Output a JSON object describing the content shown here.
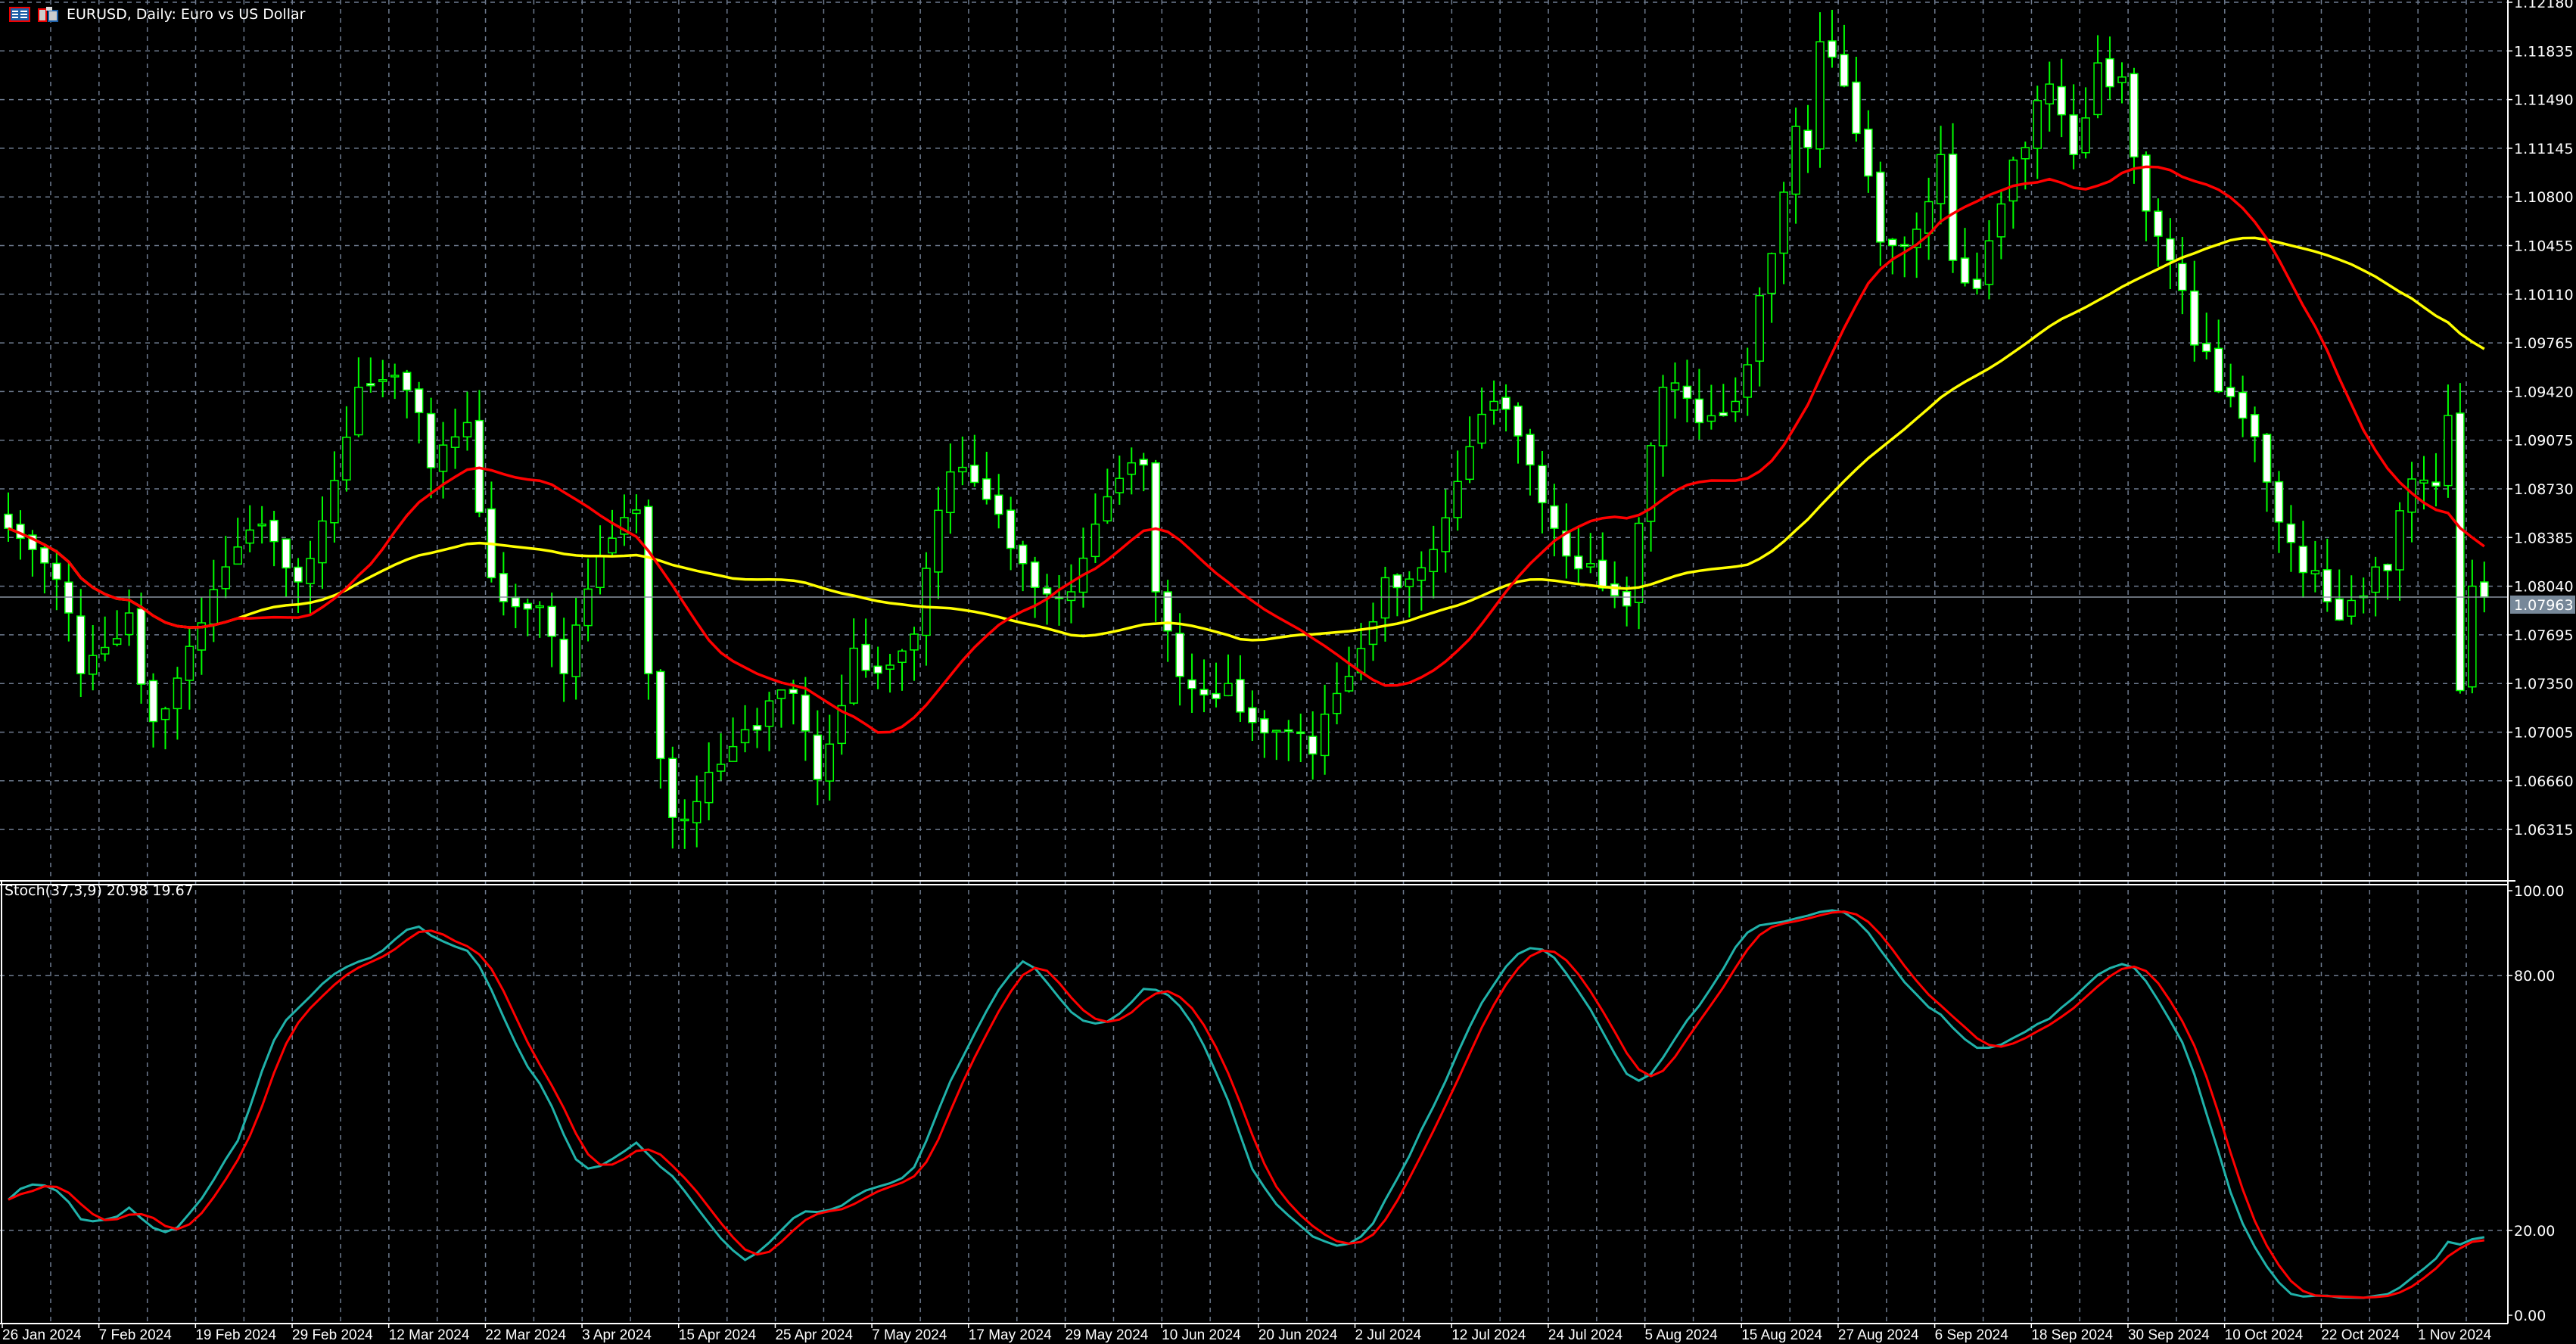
{
  "window": {
    "title": "EURUSD, Daily:  Euro vs US Dollar"
  },
  "colors": {
    "background": "#000000",
    "grid": "#6e7b8f",
    "candle_outline": "#00ff00",
    "bear_body": "#ffffff",
    "bull_body": "#000000",
    "ma_fast": "#ff0000",
    "ma_slow": "#ffff00",
    "stoch_main": "#20b2aa",
    "stoch_signal": "#ff0000",
    "price_tag": "#778899"
  },
  "icons": [
    "chart-list-icon",
    "chart-symbol-icon"
  ],
  "price_axis": {
    "ticks": [
      "1.12180",
      "1.11835",
      "1.11490",
      "1.11145",
      "1.10800",
      "1.10455",
      "1.10110",
      "1.09765",
      "1.09420",
      "1.09075",
      "1.08730",
      "1.08385",
      "1.08040",
      "1.07695",
      "1.07350",
      "1.07005",
      "1.06660",
      "1.06315"
    ],
    "current_price": "1.07963"
  },
  "stoch": {
    "label": "Stoch(37,3,9) 20.98 19.67",
    "axis_ticks": [
      "100.00",
      "80.00",
      "20.00",
      "0.00"
    ]
  },
  "date_axis": {
    "labels": [
      "26 Jan 2024",
      "7 Feb 2024",
      "19 Feb 2024",
      "29 Feb 2024",
      "12 Mar 2024",
      "22 Mar 2024",
      "3 Apr 2024",
      "15 Apr 2024",
      "25 Apr 2024",
      "7 May 2024",
      "17 May 2024",
      "29 May 2024",
      "10 Jun 2024",
      "20 Jun 2024",
      "2 Jul 2024",
      "12 Jul 2024",
      "24 Jul 2024",
      "5 Aug 2024",
      "15 Aug 2024",
      "27 Aug 2024",
      "6 Sep 2024",
      "18 Sep 2024",
      "30 Sep 2024",
      "10 Oct 2024",
      "22 Oct 2024",
      "1 Nov 2024"
    ]
  },
  "chart_data": {
    "type": "candlestick",
    "symbol": "EURUSD",
    "timeframe": "Daily",
    "ylim": [
      1.0615,
      1.1218
    ],
    "stoch_ylim": [
      0,
      100
    ],
    "grid": true,
    "closes": [
      [
        "2024-01-26",
        1.0845
      ],
      [
        "2024-02-02",
        1.0785
      ],
      [
        "2024-02-05",
        1.0742
      ],
      [
        "2024-02-09",
        1.0785
      ],
      [
        "2024-02-13",
        1.0708
      ],
      [
        "2024-02-19",
        1.0778
      ],
      [
        "2024-02-26",
        1.0848
      ],
      [
        "2024-02-29",
        1.0807
      ],
      [
        "2024-03-07",
        1.0945
      ],
      [
        "2024-03-13",
        1.0943
      ],
      [
        "2024-03-15",
        1.0888
      ],
      [
        "2024-03-20",
        1.092
      ],
      [
        "2024-03-22",
        1.081
      ],
      [
        "2024-03-28",
        1.079
      ],
      [
        "2024-04-01",
        1.0742
      ],
      [
        "2024-04-05",
        1.0838
      ],
      [
        "2024-04-09",
        1.0858
      ],
      [
        "2024-04-10",
        1.0742
      ],
      [
        "2024-04-12",
        1.064
      ],
      [
        "2024-04-17",
        1.0672
      ],
      [
        "2024-04-23",
        1.0702
      ],
      [
        "2024-04-26",
        1.0728
      ],
      [
        "2024-04-30",
        1.0667
      ],
      [
        "2024-05-03",
        1.076
      ],
      [
        "2024-05-08",
        1.0748
      ],
      [
        "2024-05-10",
        1.077
      ],
      [
        "2024-05-15",
        1.0885
      ],
      [
        "2024-05-21",
        1.0855
      ],
      [
        "2024-05-23",
        1.082
      ],
      [
        "2024-05-29",
        1.08
      ],
      [
        "2024-05-31",
        1.0848
      ],
      [
        "2024-06-06",
        1.089
      ],
      [
        "2024-06-07",
        1.08
      ],
      [
        "2024-06-11",
        1.074
      ],
      [
        "2024-06-17",
        1.0735
      ],
      [
        "2024-06-20",
        1.07
      ],
      [
        "2024-06-26",
        1.0685
      ],
      [
        "2024-07-01",
        1.074
      ],
      [
        "2024-07-04",
        1.081
      ],
      [
        "2024-07-10",
        1.083
      ],
      [
        "2024-07-17",
        1.0935
      ],
      [
        "2024-07-22",
        1.089
      ],
      [
        "2024-07-24",
        1.0845
      ],
      [
        "2024-07-29",
        1.082
      ],
      [
        "2024-08-01",
        1.079
      ],
      [
        "2024-08-06",
        1.0945
      ],
      [
        "2024-08-09",
        1.092
      ],
      [
        "2024-08-14",
        1.0935
      ],
      [
        "2024-08-16",
        1.101
      ],
      [
        "2024-08-21",
        1.113
      ],
      [
        "2024-08-22",
        1.1115
      ],
      [
        "2024-08-23",
        1.119
      ],
      [
        "2024-08-28",
        1.1125
      ],
      [
        "2024-08-30",
        1.1048
      ],
      [
        "2024-09-03",
        1.1045
      ],
      [
        "2024-09-06",
        1.111
      ],
      [
        "2024-09-09",
        1.1035
      ],
      [
        "2024-09-11",
        1.1015
      ],
      [
        "2024-09-13",
        1.1075
      ],
      [
        "2024-09-17",
        1.1115
      ],
      [
        "2024-09-19",
        1.116
      ],
      [
        "2024-09-23",
        1.111
      ],
      [
        "2024-09-25",
        1.1175
      ],
      [
        "2024-09-27",
        1.1165
      ],
      [
        "2024-10-01",
        1.107
      ],
      [
        "2024-10-03",
        1.1035
      ],
      [
        "2024-10-07",
        1.0975
      ],
      [
        "2024-10-09",
        1.0942
      ],
      [
        "2024-10-14",
        1.091
      ],
      [
        "2024-10-17",
        1.0835
      ],
      [
        "2024-10-21",
        1.0815
      ],
      [
        "2024-10-23",
        1.078
      ],
      [
        "2024-10-25",
        1.0797
      ],
      [
        "2024-10-29",
        1.0815
      ],
      [
        "2024-10-31",
        1.088
      ],
      [
        "2024-11-04",
        1.0875
      ],
      [
        "2024-11-05",
        1.0925
      ],
      [
        "2024-11-06",
        1.073
      ],
      [
        "2024-11-07",
        1.0804
      ],
      [
        "2024-11-08",
        1.07963
      ]
    ]
  }
}
